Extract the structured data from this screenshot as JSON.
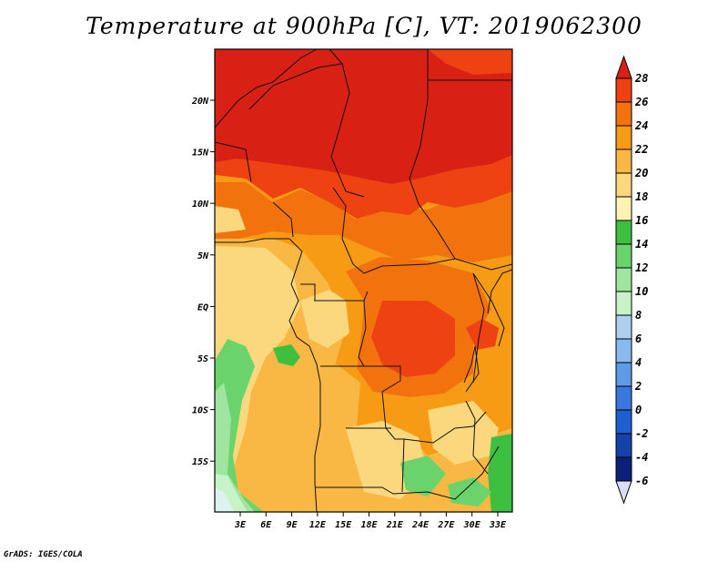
{
  "title": "Temperature at 900hPa [C], VT: 2019062300",
  "credit": "GrADS: IGES/COLA",
  "map": {
    "lat_labels": [
      "20N",
      "15N",
      "10N",
      "5N",
      "EQ",
      "5S",
      "10S",
      "15S"
    ],
    "lon_labels": [
      "3E",
      "6E",
      "9E",
      "12E",
      "15E",
      "18E",
      "21E",
      "24E",
      "27E",
      "30E",
      "33E"
    ]
  },
  "colorbar": {
    "labels": [
      "28",
      "26",
      "24",
      "22",
      "20",
      "18",
      "16",
      "14",
      "12",
      "10",
      "8",
      "6",
      "4",
      "2",
      "0",
      "-2",
      "-4",
      "-6"
    ],
    "colors": [
      "#d92014",
      "#ee4212",
      "#f2730e",
      "#f79a14",
      "#f9b843",
      "#fbd87e",
      "#fff3b4",
      "#3fbf3f",
      "#6bd36b",
      "#9fe49f",
      "#c8f2c8",
      "#aed0f0",
      "#8ab9ed",
      "#5e9ae6",
      "#3a78df",
      "#1f5fd2",
      "#1641a8",
      "#0c1f7a",
      "#dcdcf5"
    ]
  }
}
